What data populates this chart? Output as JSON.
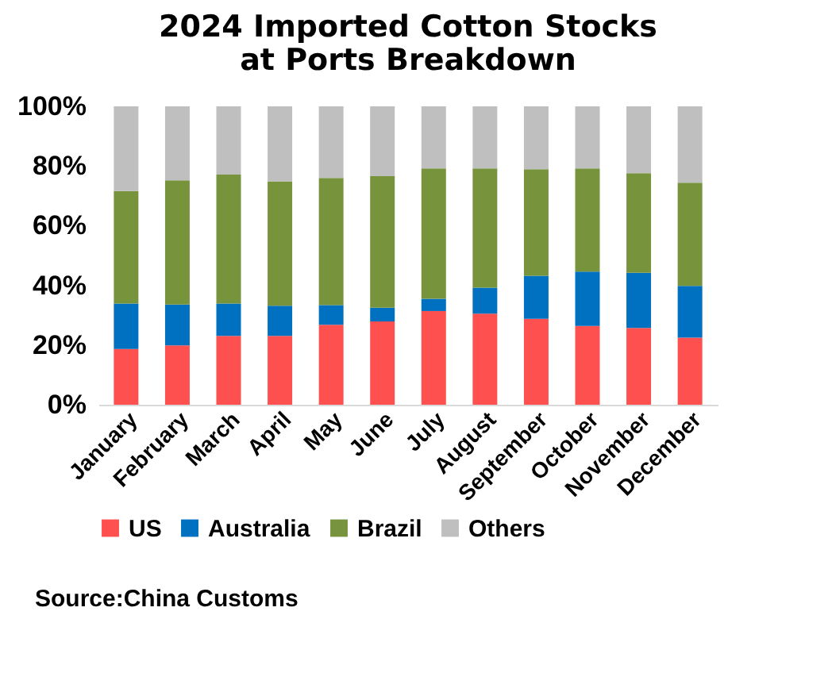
{
  "chart_data": {
    "type": "bar",
    "stacked": true,
    "title": "2024 Imported Cotton Stocks at Ports Breakdown",
    "categories": [
      "January",
      "February",
      "March",
      "April",
      "May",
      "June",
      "July",
      "August",
      "September",
      "October",
      "November",
      "December"
    ],
    "series": [
      {
        "name": "US",
        "color": "#ff5050",
        "values": [
          18.7,
          19.9,
          23.1,
          23.1,
          26.8,
          27.9,
          31.4,
          30.5,
          28.8,
          26.4,
          25.7,
          22.5
        ]
      },
      {
        "name": "Australia",
        "color": "#0070c0",
        "values": [
          15.2,
          13.7,
          10.8,
          10.1,
          6.6,
          4.6,
          4.1,
          8.7,
          14.4,
          18.2,
          18.5,
          17.3
        ]
      },
      {
        "name": "Brazil",
        "color": "#77933c",
        "values": [
          37.7,
          41.6,
          43.2,
          41.7,
          42.6,
          44.1,
          43.7,
          40.0,
          35.7,
          34.6,
          33.4,
          34.6
        ]
      },
      {
        "name": "Others",
        "color": "#bfbfbf",
        "values": [
          28.4,
          24.8,
          22.9,
          25.1,
          24.0,
          23.4,
          20.8,
          20.8,
          21.1,
          20.8,
          22.4,
          25.6
        ]
      }
    ],
    "ylim": [
      0,
      100
    ],
    "yticks": [
      {
        "value": 0,
        "label": "0%"
      },
      {
        "value": 20,
        "label": "20%"
      },
      {
        "value": 40,
        "label": "40%"
      },
      {
        "value": 60,
        "label": "60%"
      },
      {
        "value": 80,
        "label": "80%"
      },
      {
        "value": 100,
        "label": "100%"
      }
    ],
    "grid": false,
    "legend": "bottom",
    "annotations": [
      "Source:China Customs"
    ]
  }
}
